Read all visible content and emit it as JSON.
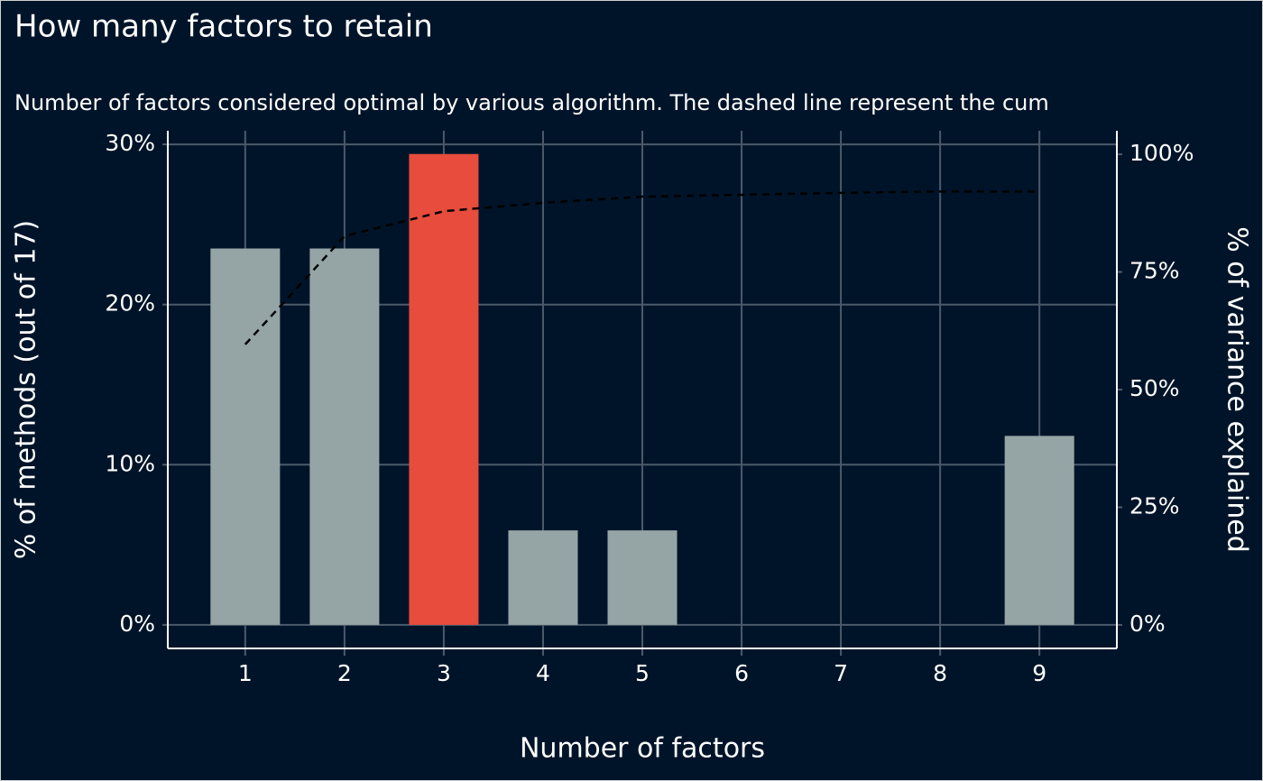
{
  "chart_data": {
    "type": "bar",
    "title": "How many factors to retain",
    "subtitle": "Number of factors considered optimal by various algorithm. The dashed line represent the cum",
    "x_label": "Number of factors",
    "y_label": "% of methods (out of 17)",
    "y2_label": "% of variance explained",
    "x": [
      1,
      2,
      3,
      4,
      5,
      6,
      7,
      8,
      9
    ],
    "xlim": [
      0.22,
      9.78
    ],
    "xticks": [
      1,
      2,
      3,
      4,
      5,
      6,
      7,
      8,
      9
    ],
    "ylim": [
      -1.47,
      30.85
    ],
    "yticks": [
      {
        "value": 0,
        "label": "0%"
      },
      {
        "value": 10,
        "label": "10%"
      },
      {
        "value": 20,
        "label": "20%"
      },
      {
        "value": 30,
        "label": "30%"
      }
    ],
    "y2lim": [
      -5,
      105
    ],
    "y2ticks": [
      {
        "value": 0,
        "label": "0%"
      },
      {
        "value": 25,
        "label": "25%"
      },
      {
        "value": 50,
        "label": "50%"
      },
      {
        "value": 75,
        "label": "75%"
      },
      {
        "value": 100,
        "label": "100%"
      }
    ],
    "grid": true,
    "series": [
      {
        "type": "bar",
        "color": "#95a5a6",
        "colors": [
          "#95a5a6",
          "#95a5a6",
          "#e74c3c",
          "#95a5a6",
          "#95a5a6",
          "#95a5a6",
          "#95a5a6",
          "#95a5a6",
          "#95a5a6"
        ],
        "values": [
          23.5,
          23.5,
          29.4,
          5.9,
          5.9,
          0,
          0,
          0,
          11.8
        ]
      },
      {
        "type": "line",
        "axis": "y2",
        "color": "#000000",
        "dashed": true,
        "values": [
          59.6,
          82.6,
          87.9,
          89.7,
          91.0,
          91.4,
          91.8,
          92.1,
          92.1
        ]
      }
    ]
  }
}
